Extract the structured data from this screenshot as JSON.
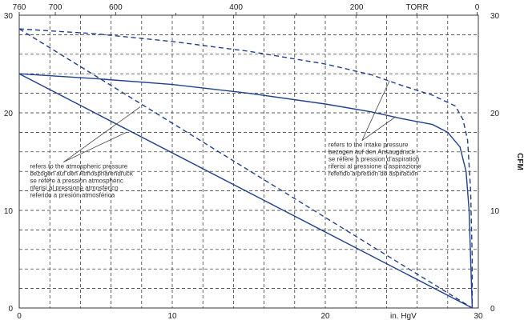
{
  "chart_data": {
    "type": "line",
    "title": "",
    "xlabel": "in. HgV",
    "top_axis_unit": "TORR",
    "ylabel_right": "CFM",
    "xlim": [
      0,
      30
    ],
    "ylim": [
      0,
      30
    ],
    "grid": true,
    "x_ticks": [
      "0",
      "10",
      "20",
      "30"
    ],
    "x_minor_ticks": [
      2,
      4,
      6,
      8,
      12,
      14,
      16,
      18,
      22,
      24,
      26,
      28
    ],
    "top_ticks": [
      "760",
      "700",
      "600",
      "400",
      "200",
      "0"
    ],
    "top_ticks_inhgv": [
      0,
      2.36,
      6.3,
      14.17,
      22.05,
      29.92
    ],
    "top_minor_ticks_inhgv": [
      10.24,
      18.11,
      25.98
    ],
    "y_ticks_left": [
      "0",
      "10",
      "20",
      "30"
    ],
    "y_ticks_right": [
      "0",
      "10",
      "20",
      "30"
    ],
    "series": [
      {
        "style": "solid",
        "color": "#1f3f8f",
        "points": [
          [
            0,
            24
          ],
          [
            5,
            23.5
          ],
          [
            10,
            22.9
          ],
          [
            15,
            22
          ],
          [
            20,
            20.9
          ],
          [
            23,
            20.1
          ],
          [
            25,
            19.4
          ],
          [
            27,
            18.8
          ],
          [
            28,
            18
          ],
          [
            28.8,
            16.5
          ],
          [
            29.2,
            14
          ],
          [
            29.4,
            10
          ],
          [
            29.5,
            5
          ],
          [
            29.6,
            0
          ]
        ]
      },
      {
        "style": "dashed",
        "color": "#1f3f8f",
        "points": [
          [
            0,
            28.6
          ],
          [
            5,
            28.1
          ],
          [
            10,
            27.3
          ],
          [
            15,
            26.3
          ],
          [
            20,
            25
          ],
          [
            23,
            23.9
          ],
          [
            25,
            22.8
          ],
          [
            27,
            21.8
          ],
          [
            28.5,
            20.7
          ],
          [
            29,
            19.3
          ],
          [
            29.3,
            17.2
          ],
          [
            29.5,
            12
          ],
          [
            29.6,
            5
          ],
          [
            29.6,
            0
          ]
        ]
      },
      {
        "style": "solid",
        "color": "#1f3f8f",
        "points": [
          [
            0,
            24
          ],
          [
            29.6,
            0
          ]
        ]
      },
      {
        "style": "dashed",
        "color": "#1f3f8f",
        "points": [
          [
            0,
            28.6
          ],
          [
            29.6,
            0
          ]
        ]
      }
    ],
    "annotations": [
      {
        "lines": [
          "refers to the atmospheric pressure",
          "bezogen auf den Atmosphärendruck",
          "se réfère à pression atmosphéric",
          "riferisi al pressione atmosferico",
          "referido a presión atmosférica"
        ],
        "text_at": [
          0.7,
          14.3
        ],
        "pointers": [
          [
            7.9,
            20.6
          ],
          [
            7.0,
            18.0
          ]
        ]
      },
      {
        "lines": [
          "refers to the intake pressure",
          "bezogen auf den Ansaugdruck",
          "se réfère à pression d'aspiration",
          "riferisi al pressione d'aspirazione",
          "referido a presión de aspiración"
        ],
        "text_at": [
          20.2,
          16.5
        ],
        "pointers": [
          [
            24.2,
            23.3
          ],
          [
            24.6,
            19.6
          ]
        ]
      }
    ]
  }
}
